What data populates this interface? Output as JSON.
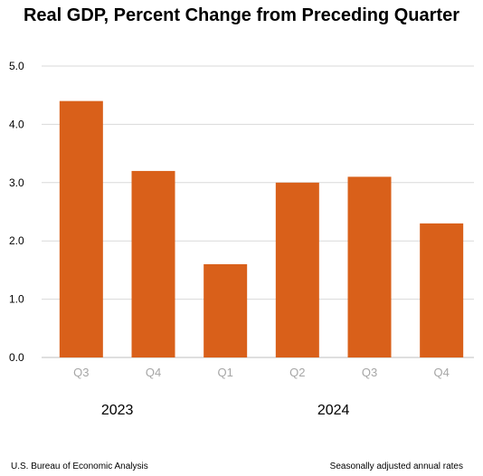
{
  "chart_data": {
    "type": "bar",
    "title": "Real GDP, Percent Change from Preceding Quarter",
    "categories": [
      "Q3",
      "Q4",
      "Q1",
      "Q2",
      "Q3",
      "Q4"
    ],
    "groups": [
      {
        "label": "2023",
        "categories": [
          "Q3",
          "Q4"
        ]
      },
      {
        "label": "2024",
        "categories": [
          "Q1",
          "Q2",
          "Q3",
          "Q4"
        ]
      }
    ],
    "values": [
      4.4,
      3.2,
      1.6,
      3.0,
      3.1,
      2.3
    ],
    "ylim": [
      0,
      5
    ],
    "yticks": [
      "0.0",
      "1.0",
      "2.0",
      "3.0",
      "4.0",
      "5.0"
    ],
    "xlabel": "",
    "ylabel": "",
    "grid": true,
    "bar_color": "#D9601A",
    "grid_color": "#D9D9D9",
    "tick_label_color": "#A6A6A6"
  },
  "footer": {
    "source": "U.S. Bureau of Economic Analysis",
    "note": "Seasonally adjusted annual rates"
  }
}
